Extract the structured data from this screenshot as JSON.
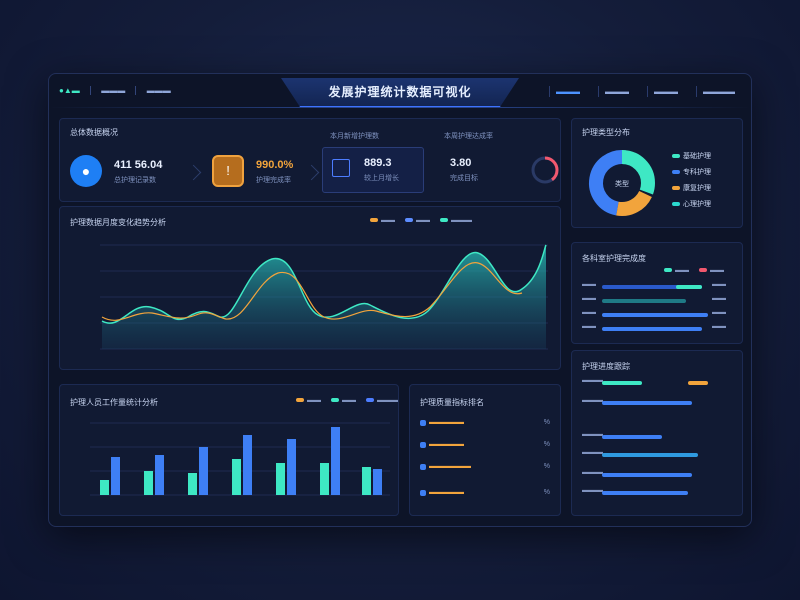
{
  "header": {
    "title": "发展护理统计数据可视化",
    "left_logo": "●▲▬",
    "left_links": [
      "▬▬▬",
      "▬▬▬"
    ],
    "tabs": [
      "▬▬▬",
      "▬▬▬",
      "▬▬▬",
      "▬▬▬▬"
    ]
  },
  "kpi_panel": {
    "title": "总体数据概况",
    "card1": {
      "icon": "person-icon",
      "value": "411 56.04",
      "sub": "总护理记录数"
    },
    "card2": {
      "icon": "alert-icon",
      "value": "990.0%",
      "sub": "护理完成率"
    },
    "card3": {
      "label": "本月新增护理数",
      "value": "889.3",
      "sub": "较上月增长"
    },
    "card4": {
      "label": "本周护理达成率",
      "value": "3.80",
      "sub": "完成目标"
    }
  },
  "pie_panel": {
    "title": "护理类型分布",
    "center_label": "类型",
    "legend": [
      {
        "label": "基础护理",
        "color": "#3ee8c4"
      },
      {
        "label": "专科护理",
        "color": "#3e7ff5"
      },
      {
        "label": "康复护理",
        "color": "#f2a43c"
      },
      {
        "label": "心理护理",
        "color": "#2bd9d0"
      }
    ]
  },
  "area_panel": {
    "title": "护理数据月度变化趋势分析",
    "legend": [
      {
        "label": "▬▬",
        "color": "#f2a43c"
      },
      {
        "label": "▬▬",
        "color": "#5d8dff"
      },
      {
        "label": "▬▬▬",
        "color": "#3ee8c4"
      }
    ]
  },
  "hbar_panel": {
    "title": "各科室护理完成度",
    "legend": [
      {
        "label": "▬▬",
        "color": "#3ee8c4"
      },
      {
        "label": "▬▬",
        "color": "#f2586e"
      }
    ],
    "rows": [
      {
        "label": "▬▬",
        "value": "▬▬"
      },
      {
        "label": "▬▬",
        "value": "▬▬"
      },
      {
        "label": "▬▬",
        "value": "▬▬"
      },
      {
        "label": "▬▬",
        "value": "▬▬"
      }
    ]
  },
  "bar_panel": {
    "title": "护理人员工作量统计分析",
    "legend": [
      {
        "label": "▬▬",
        "color": "#f2a43c"
      },
      {
        "label": "▬▬",
        "color": "#3ee8c4"
      },
      {
        "label": "▬▬▬",
        "color": "#4d7dff"
      }
    ]
  },
  "list_panel": {
    "title": "护理质量指标排名",
    "rows": [
      {
        "label": "▬▬▬▬▬",
        "value": "%",
        "color": "#3e7ff5"
      },
      {
        "label": "▬▬▬▬▬",
        "value": "%",
        "color": "#3e7ff5"
      },
      {
        "label": "▬▬▬▬▬▬",
        "value": "%",
        "color": "#3e7ff5"
      },
      {
        "label": "▬▬▬▬▬",
        "value": "%",
        "color": "#3e7ff5"
      }
    ]
  },
  "progress_panel": {
    "title": "护理进度跟踪",
    "rows": [
      {
        "label": "▬▬▬"
      },
      {
        "label": "▬▬▬"
      },
      {
        "label": "▬▬▬"
      },
      {
        "label": "▬▬▬"
      },
      {
        "label": "▬▬▬"
      },
      {
        "label": "▬▬▬"
      }
    ]
  }
}
